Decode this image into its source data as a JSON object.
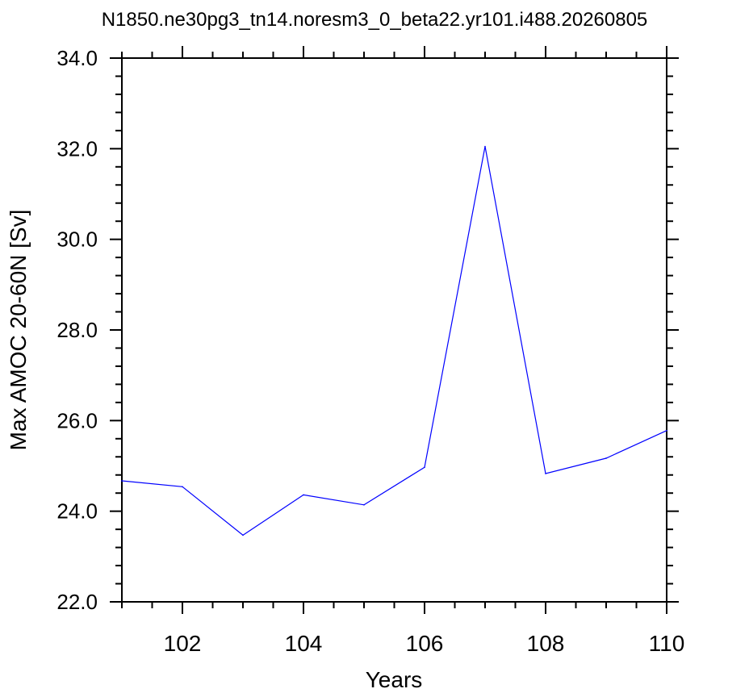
{
  "chart_data": {
    "type": "line",
    "title": "N1850.ne30pg3_tn14.noresm3_0_beta22.yr101.i488.20260805",
    "xlabel": "Years",
    "ylabel": "Max AMOC 20-60N [Sv]",
    "xlim": [
      101,
      110
    ],
    "ylim": [
      22.0,
      34.0
    ],
    "x_ticks": [
      "102",
      "104",
      "106",
      "108",
      "110"
    ],
    "y_ticks": [
      "22.0",
      "24.0",
      "26.0",
      "28.0",
      "30.0",
      "32.0",
      "34.0"
    ],
    "grid": false,
    "series": [
      {
        "color": "#0000ff",
        "x": [
          101,
          102,
          103,
          104,
          105,
          106,
          107,
          108,
          109,
          110
        ],
        "y": [
          24.67,
          24.54,
          23.47,
          24.36,
          24.14,
          24.97,
          32.05,
          24.83,
          25.17,
          25.78
        ]
      }
    ]
  }
}
